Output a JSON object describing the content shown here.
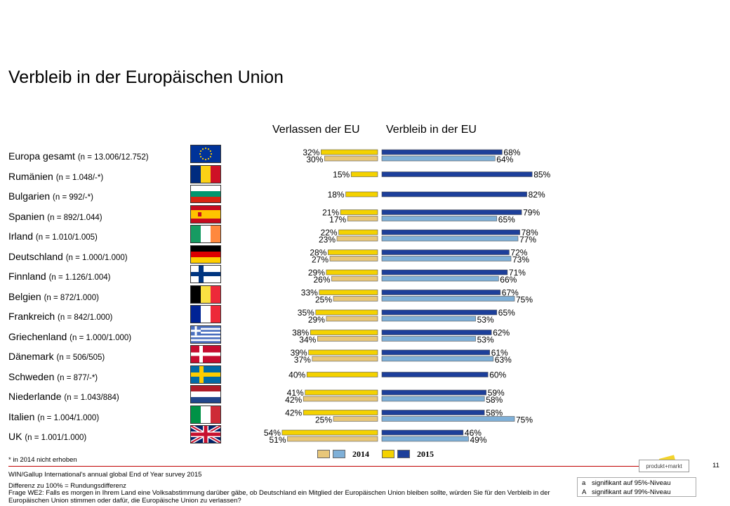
{
  "page_title": "Verbleib in der Europäischen Union",
  "headers": {
    "leave": "Verlassen der EU",
    "stay": "Verbleib in der EU"
  },
  "chart_data": {
    "type": "bar",
    "orientation": "horizontal-diverging",
    "series": [
      {
        "name": "2014",
        "colors": {
          "leave": "#e8c77a",
          "stay": "#7fb0d8"
        }
      },
      {
        "name": "2015",
        "colors": {
          "leave": "#f4d200",
          "stay": "#1d3f9a"
        }
      }
    ],
    "rows": [
      {
        "name": "Europa gesamt",
        "n": "(n = 13.006/12.752)",
        "flag": "eu-flag",
        "leave_2015": 32,
        "stay_2015": 68,
        "leave_2014": 30,
        "stay_2014": 64
      },
      {
        "name": "Rumänien",
        "n": "(n = 1.048/-*)",
        "flag": "romania-flag",
        "leave_2015": 15,
        "stay_2015": 85,
        "leave_2014": null,
        "stay_2014": null
      },
      {
        "name": "Bulgarien",
        "n": "(n = 992/-*)",
        "flag": "bulgaria-flag",
        "leave_2015": 18,
        "stay_2015": 82,
        "leave_2014": null,
        "stay_2014": null
      },
      {
        "name": "Spanien",
        "n": "(n = 892/1.044)",
        "flag": "spain-flag",
        "leave_2015": 21,
        "stay_2015": 79,
        "leave_2014": 17,
        "stay_2014": 65
      },
      {
        "name": "Irland",
        "n": "(n = 1.010/1.005)",
        "flag": "ireland-flag",
        "leave_2015": 22,
        "stay_2015": 78,
        "leave_2014": 23,
        "stay_2014": 77
      },
      {
        "name": "Deutschland",
        "n": "(n = 1.000/1.000)",
        "flag": "germany-flag",
        "leave_2015": 28,
        "stay_2015": 72,
        "leave_2014": 27,
        "stay_2014": 73
      },
      {
        "name": "Finnland",
        "n": "(n = 1.126/1.004)",
        "flag": "finland-flag",
        "leave_2015": 29,
        "stay_2015": 71,
        "leave_2014": 26,
        "stay_2014": 66
      },
      {
        "name": "Belgien",
        "n": "(n = 872/1.000)",
        "flag": "belgium-flag",
        "leave_2015": 33,
        "stay_2015": 67,
        "leave_2014": 25,
        "stay_2014": 75
      },
      {
        "name": "Frankreich",
        "n": "(n = 842/1.000)",
        "flag": "france-flag",
        "leave_2015": 35,
        "stay_2015": 65,
        "leave_2014": 29,
        "stay_2014": 53
      },
      {
        "name": "Griechenland",
        "n": "(n = 1.000/1.000)",
        "flag": "greece-flag",
        "leave_2015": 38,
        "stay_2015": 62,
        "leave_2014": 34,
        "stay_2014": 53
      },
      {
        "name": "Dänemark",
        "n": "(n = 506/505)",
        "flag": "denmark-flag",
        "leave_2015": 39,
        "stay_2015": 61,
        "leave_2014": 37,
        "stay_2014": 63
      },
      {
        "name": "Schweden",
        "n": "(n = 877/-*)",
        "flag": "sweden-flag",
        "leave_2015": 40,
        "stay_2015": 60,
        "leave_2014": null,
        "stay_2014": null
      },
      {
        "name": "Niederlande",
        "n": "(n = 1.043/884)",
        "flag": "netherlands-flag",
        "leave_2015": 41,
        "stay_2015": 59,
        "leave_2014": 42,
        "stay_2014": 58
      },
      {
        "name": "Italien",
        "n": "(n = 1.004/1.000)",
        "flag": "italy-flag",
        "leave_2015": 42,
        "stay_2015": 58,
        "leave_2014": 25,
        "stay_2014": 75
      },
      {
        "name": "UK",
        "n": "(n = 1.001/1.000)",
        "flag": "uk-flag",
        "leave_2015": 54,
        "stay_2015": 46,
        "leave_2014": 51,
        "stay_2014": 49
      }
    ],
    "value_suffix": "%"
  },
  "legend": {
    "label_2014": "2014",
    "label_2015": "2015"
  },
  "footer": {
    "footnote": "* in 2014 nicht erhoben",
    "source": "WIN/Gallup International's annual global End of Year survey 2015",
    "diff_note": "Differenz zu 100% = Rundungsdifferenz",
    "question": "Frage WE2: Falls es morgen in Ihrem Land eine Volksabstimmung darüber gäbe, ob Deutschland ein Mitglied der Europäischen Union bleiben sollte, würden Sie für den Verbleib in der Europäischen Union stimmen oder dafür, die Europäische Union zu verlassen?",
    "logo_text": "produkt+markt",
    "page_number": "11",
    "significance": [
      {
        "key": "a",
        "text": "signifikant auf 95%-Niveau"
      },
      {
        "key": "A",
        "text": "signifikant auf 99%-Niveau"
      }
    ]
  }
}
